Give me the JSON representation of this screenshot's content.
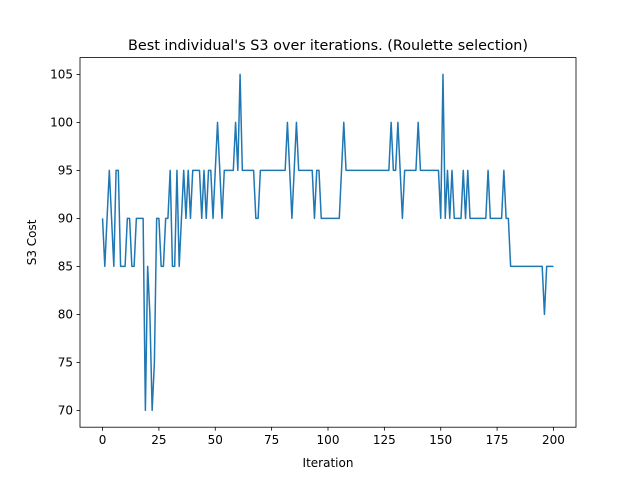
{
  "chart_data": {
    "type": "line",
    "title": "Best individual's S3 over iterations. (Roulette selection)",
    "x_label": "Iteration",
    "y_label": "S3 Cost",
    "x": [
      0,
      1,
      2,
      3,
      4,
      5,
      6,
      7,
      8,
      9,
      10,
      11,
      12,
      13,
      14,
      15,
      16,
      17,
      18,
      19,
      20,
      21,
      22,
      23,
      24,
      25,
      26,
      27,
      28,
      29,
      30,
      31,
      32,
      33,
      34,
      35,
      36,
      37,
      38,
      39,
      40,
      41,
      42,
      43,
      44,
      45,
      46,
      47,
      48,
      49,
      50,
      51,
      52,
      53,
      54,
      55,
      56,
      57,
      58,
      59,
      60,
      61,
      62,
      63,
      64,
      65,
      66,
      67,
      68,
      69,
      70,
      71,
      72,
      73,
      74,
      75,
      76,
      77,
      78,
      79,
      80,
      81,
      82,
      83,
      84,
      85,
      86,
      87,
      88,
      89,
      90,
      91,
      92,
      93,
      94,
      95,
      96,
      97,
      98,
      99,
      100,
      101,
      102,
      103,
      104,
      105,
      106,
      107,
      108,
      109,
      110,
      111,
      112,
      113,
      114,
      115,
      116,
      117,
      118,
      119,
      120,
      121,
      122,
      123,
      124,
      125,
      126,
      127,
      128,
      129,
      130,
      131,
      132,
      133,
      134,
      135,
      136,
      137,
      138,
      139,
      140,
      141,
      142,
      143,
      144,
      145,
      146,
      147,
      148,
      149,
      150,
      151,
      152,
      153,
      154,
      155,
      156,
      157,
      158,
      159,
      160,
      161,
      162,
      163,
      164,
      165,
      166,
      167,
      168,
      169,
      170,
      171,
      172,
      173,
      174,
      175,
      176,
      177,
      178,
      179,
      180,
      181,
      182,
      183,
      184,
      185,
      186,
      187,
      188,
      189,
      190,
      191,
      192,
      193,
      194,
      195,
      196,
      197,
      198,
      199,
      200
    ],
    "series": [
      {
        "name": "S3",
        "color": "#1f77b4",
        "values": [
          90,
          85,
          90,
          95,
          90,
          85,
          95,
          95,
          85,
          85,
          85,
          90,
          90,
          85,
          85,
          90,
          90,
          90,
          90,
          70,
          85,
          80,
          70,
          75,
          90,
          90,
          85,
          85,
          90,
          90,
          95,
          85,
          85,
          95,
          85,
          90,
          95,
          90,
          95,
          90,
          95,
          95,
          95,
          95,
          90,
          95,
          90,
          95,
          95,
          90,
          95,
          100,
          95,
          90,
          95,
          95,
          95,
          95,
          95,
          100,
          95,
          105,
          95,
          95,
          95,
          95,
          95,
          95,
          90,
          90,
          95,
          95,
          95,
          95,
          95,
          95,
          95,
          95,
          95,
          95,
          95,
          95,
          100,
          95,
          90,
          95,
          100,
          95,
          95,
          95,
          95,
          95,
          95,
          95,
          90,
          95,
          95,
          90,
          90,
          90,
          90,
          90,
          90,
          90,
          90,
          90,
          95,
          100,
          95,
          95,
          95,
          95,
          95,
          95,
          95,
          95,
          95,
          95,
          95,
          95,
          95,
          95,
          95,
          95,
          95,
          95,
          95,
          95,
          100,
          95,
          95,
          100,
          95,
          90,
          95,
          95,
          95,
          95,
          95,
          95,
          100,
          95,
          95,
          95,
          95,
          95,
          95,
          95,
          95,
          95,
          90,
          105,
          90,
          95,
          90,
          95,
          90,
          90,
          90,
          90,
          95,
          90,
          95,
          90,
          90,
          90,
          90,
          90,
          90,
          90,
          90,
          95,
          90,
          90,
          90,
          90,
          90,
          90,
          95,
          90,
          90,
          85,
          85,
          85,
          85,
          85,
          85,
          85,
          85,
          85,
          85,
          85,
          85,
          85,
          85,
          85,
          80,
          85,
          85,
          85,
          85
        ]
      }
    ],
    "xlim": [
      -10,
      210
    ],
    "xticks": [
      0,
      25,
      50,
      75,
      100,
      125,
      150,
      175,
      200
    ],
    "ylim": [
      68.25,
      106.75
    ],
    "yticks": [
      70,
      75,
      80,
      85,
      90,
      95,
      100,
      105
    ]
  }
}
